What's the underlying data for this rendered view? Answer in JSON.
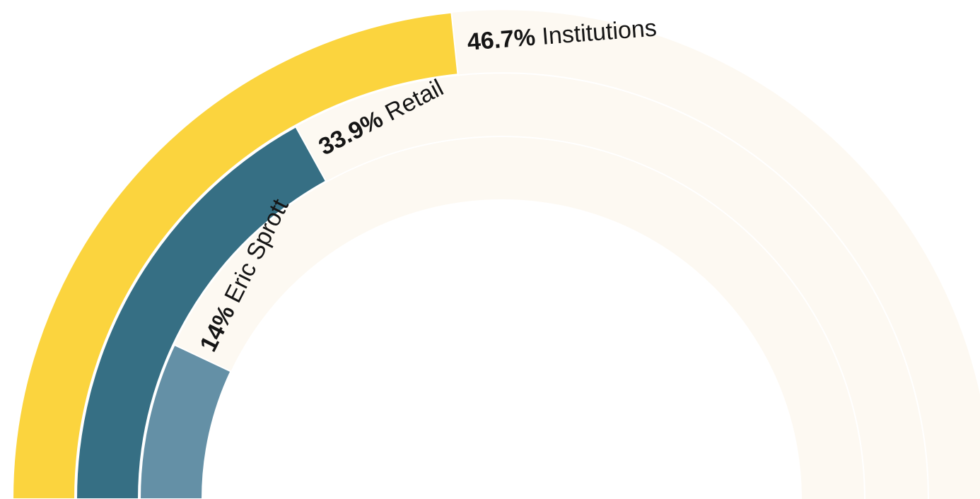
{
  "chart_data": {
    "type": "radial-bar",
    "max_value": 100,
    "start_angle_deg": 180,
    "end_angle_deg": 0,
    "track_color": "#fdf9f2",
    "series": [
      {
        "name": "Institutions",
        "value": 46.7,
        "value_label": "46.7%",
        "color": "#fbd43e"
      },
      {
        "name": "Retail",
        "value": 33.9,
        "value_label": "33.9%",
        "color": "#366f84"
      },
      {
        "name": "Eric Sprott",
        "value": 14,
        "value_label": "14%",
        "color": "#6490a6"
      }
    ]
  }
}
